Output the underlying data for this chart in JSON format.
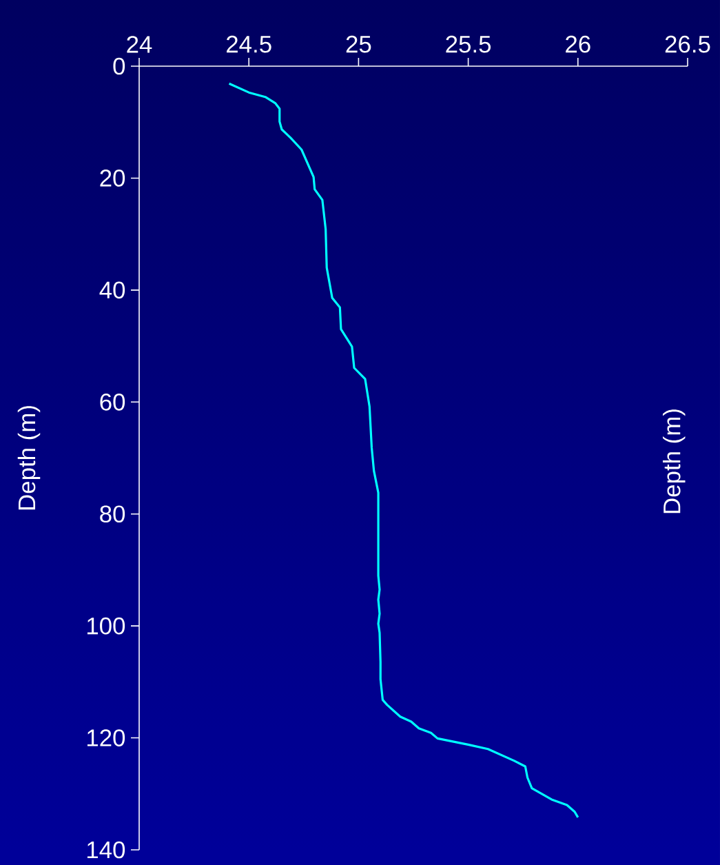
{
  "chart_data": {
    "type": "line",
    "ylabel": "Depth (m)",
    "y2label": "Depth (m)",
    "xlim": [
      24,
      26.5
    ],
    "xticks": [
      24,
      24.5,
      25,
      25.5,
      26,
      26.5
    ],
    "ylim": [
      140,
      0
    ],
    "yticks": [
      0,
      20,
      40,
      60,
      80,
      100,
      120,
      140
    ],
    "series": [
      {
        "color": "#00ffff",
        "x": [
          24.41,
          24.5,
          24.575,
          24.62,
          24.64,
          24.64,
          24.65,
          24.69,
          24.74,
          24.795,
          24.8,
          24.835,
          24.85,
          24.855,
          24.88,
          24.915,
          24.92,
          24.97,
          24.98,
          25.03,
          25.05,
          25.06,
          25.07,
          25.09,
          25.09,
          25.096,
          25.09,
          25.096,
          25.09,
          25.096,
          25.1,
          25.1,
          25.11,
          25.13,
          25.19,
          25.24,
          25.275,
          25.33,
          25.36,
          25.5,
          25.59,
          25.71,
          25.76,
          25.77,
          25.79,
          25.88,
          25.95,
          25.985,
          26.0
        ],
        "values": [
          3.1,
          4.7,
          5.5,
          6.6,
          7.6,
          9.9,
          11.3,
          12.8,
          14.9,
          19.8,
          22.0,
          23.9,
          29.1,
          36.0,
          41.4,
          43.1,
          47.0,
          50.1,
          53.9,
          55.9,
          60.8,
          68.2,
          72.3,
          76.2,
          91.0,
          93.5,
          95.3,
          97.8,
          99.6,
          101.2,
          106.4,
          109.5,
          113.2,
          114.1,
          116.2,
          117.1,
          118.3,
          119.1,
          120.1,
          121.2,
          122.0,
          124.1,
          125.1,
          127.1,
          129.0,
          131.0,
          132.0,
          133.2,
          134.2
        ]
      }
    ]
  }
}
